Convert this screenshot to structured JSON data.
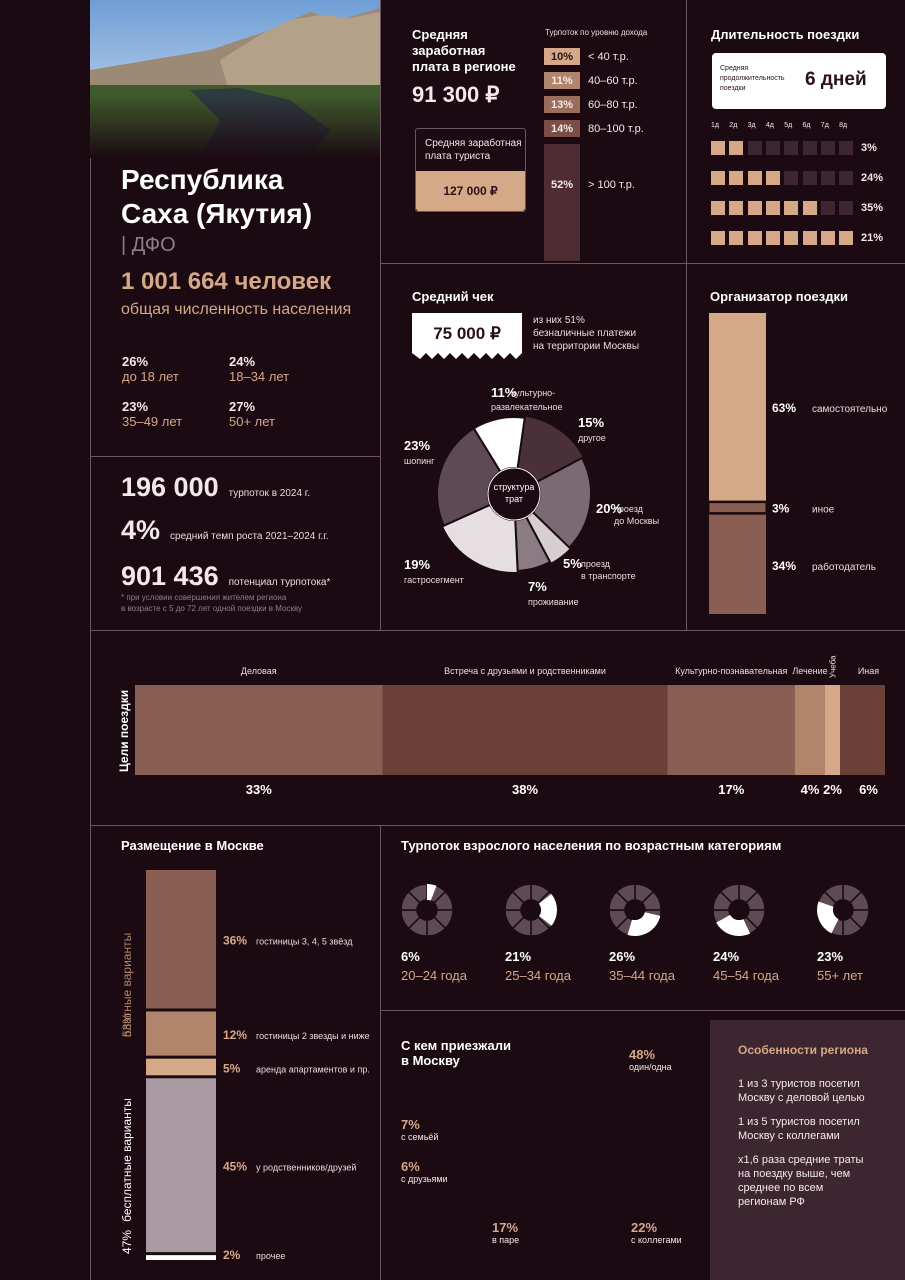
{
  "colors": {
    "bg": "#1c0a12",
    "accent": "#d5a887",
    "brown1": "#8a5e52",
    "brown2": "#6a4038",
    "brown3": "#b0856b",
    "grey": "#a99aa2",
    "lightgrey": "#d7ced2",
    "panel": "#3e2630"
  },
  "hero": {
    "title1": "Республика",
    "title2": "Саха (Якутия)",
    "district": "| ДФО",
    "population": "1 001 664 человек",
    "population_label": "общая численность населения",
    "age": [
      {
        "pct": "26%",
        "label": "до 18 лет"
      },
      {
        "pct": "24%",
        "label": "18–34 лет"
      },
      {
        "pct": "23%",
        "label": "35–49 лет"
      },
      {
        "pct": "27%",
        "label": "50+ лет"
      }
    ]
  },
  "flow": {
    "v1": "196 000",
    "l1": "турпоток в 2024 г.",
    "v2": "4%",
    "l2": "средний темп роста 2021–2024 г.г.",
    "v3": "901 436",
    "l3": "потенциал турпотока*",
    "note1": "* при условии совершения жителем региона",
    "note2": "в возрасте с 5 до 72 лет одной поездки в Москву"
  },
  "salary": {
    "title1": "Средняя",
    "title2": "заработная",
    "title3": "плата в регионе",
    "value": "91 300 ₽",
    "tourist_label1": "Средняя заработная",
    "tourist_label2": "плата туриста",
    "tourist_value": "127 000 ₽",
    "income_title": "Турпоток по уровню дохода",
    "income": [
      {
        "pct": "10%",
        "label": "< 40 т.р."
      },
      {
        "pct": "11%",
        "label": "40–60 т.р."
      },
      {
        "pct": "13%",
        "label": "60–80 т.р."
      },
      {
        "pct": "14%",
        "label": "80–100 т.р."
      },
      {
        "pct": "52%",
        "label": "> 100 т.р."
      }
    ]
  },
  "duration": {
    "title": "Длительность поездки",
    "avg_label1": "Средняя",
    "avg_label2": "продолжительность",
    "avg_label3": "поездки",
    "avg_value": "6 дней",
    "days": [
      "1д",
      "2д",
      "3д",
      "4д",
      "5д",
      "6д",
      "7д",
      "8д"
    ],
    "rows": [
      {
        "filled": 2,
        "pct": "3%"
      },
      {
        "filled": 4,
        "pct": "24%"
      },
      {
        "filled": 6,
        "pct": "35%"
      },
      {
        "filled": 8,
        "pct": "21%"
      }
    ]
  },
  "check": {
    "title": "Средний чек",
    "value": "75 000 ₽",
    "note1": "из них 51%",
    "note2": "безналичные платежи",
    "note3": "на территории Москвы",
    "center1": "структура",
    "center2": "трат",
    "slices": [
      {
        "pct": "11%",
        "label1": "культурно-",
        "label2": "развлекательное",
        "value": 11,
        "color": "#ffffff"
      },
      {
        "pct": "15%",
        "label1": "другое",
        "label2": "",
        "value": 15,
        "color": "#4a3039"
      },
      {
        "pct": "20%",
        "label1": "проезд",
        "label2": "до Москвы",
        "value": 20,
        "color": "#7b6a73"
      },
      {
        "pct": "5%",
        "label1": "проезд",
        "label2": "в транспорте",
        "value": 5,
        "color": "#d7ced2"
      },
      {
        "pct": "7%",
        "label1": "проживание",
        "label2": "",
        "value": 7,
        "color": "#8b7b83"
      },
      {
        "pct": "19%",
        "label1": "гастросегмент",
        "label2": "",
        "value": 19,
        "color": "#e6dfe2"
      },
      {
        "pct": "23%",
        "label1": "шопинг",
        "label2": "",
        "value": 23,
        "color": "#5e4a54"
      }
    ]
  },
  "organizer": {
    "title": "Организатор  поездки",
    "items": [
      {
        "pct": "63%",
        "label": "самостоятельно",
        "value": 63,
        "color": "#d5a887"
      },
      {
        "pct": "3%",
        "label": "иное",
        "value": 3,
        "color": "#8a5e52"
      },
      {
        "pct": "34%",
        "label": "работодатель",
        "value": 34,
        "color": "#8a5e52"
      }
    ]
  },
  "purpose": {
    "axis": "Цели поездки",
    "items": [
      {
        "label": "Деловая",
        "pct": "33%",
        "value": 33,
        "color": "#8a5e52"
      },
      {
        "label": "Встреча с друзьями и родственниками",
        "pct": "38%",
        "value": 38,
        "color": "#6a4038"
      },
      {
        "label": "Культурно-познавательная",
        "pct": "17%",
        "value": 17,
        "color": "#8a5e52"
      },
      {
        "label": "Лечение",
        "pct": "4%",
        "value": 4,
        "color": "#b0856b"
      },
      {
        "label": "Учеба",
        "pct": "2%",
        "value": 2,
        "color": "#d5a887"
      },
      {
        "label": "Иная",
        "pct": "6%",
        "value": 6,
        "color": "#6a4038"
      }
    ]
  },
  "lodging": {
    "title": "Размещение в Москве",
    "paid": "платные варианты",
    "paid_pct": "53%",
    "free": "бесплатные варианты",
    "free_pct": "47%",
    "items": [
      {
        "pct": "36%",
        "label": "гостиницы 3, 4, 5 звёзд",
        "value": 36,
        "color": "#8a5e52"
      },
      {
        "pct": "12%",
        "label": "гостиницы 2 звезды и ниже",
        "value": 12,
        "color": "#b0856b"
      },
      {
        "pct": "5%",
        "label": "аренда апартаментов и пр.",
        "value": 5,
        "color": "#d5a887"
      },
      {
        "pct": "45%",
        "label": "у родственников/друзей",
        "value": 45,
        "color": "#a99aa2"
      },
      {
        "pct": "2%",
        "label": "прочее",
        "value": 2,
        "color": "#ffffff"
      }
    ]
  },
  "agegroups": {
    "title": "Турпоток взрослого населения по возрастным категориям",
    "items": [
      {
        "pct": "6%",
        "label": "20–24 года",
        "value": 6
      },
      {
        "pct": "21%",
        "label": "25–34 года",
        "value": 21
      },
      {
        "pct": "26%",
        "label": "35–44 года",
        "value": 26
      },
      {
        "pct": "24%",
        "label": "45–54 года",
        "value": 24
      },
      {
        "pct": "23%",
        "label": "55+ лет",
        "value": 23
      }
    ]
  },
  "company": {
    "title1": "С кем приезжали",
    "title2": "в Москву",
    "items": [
      {
        "pct": "48%",
        "label": "один/одна"
      },
      {
        "pct": "7%",
        "label": "с семьёй"
      },
      {
        "pct": "6%",
        "label": "с друзьями"
      },
      {
        "pct": "17%",
        "label": "в паре"
      },
      {
        "pct": "22%",
        "label": "с коллегами"
      }
    ]
  },
  "features": {
    "title": "Особенности региона",
    "p1a": "1 из 3 туристов посетил",
    "p1b": "Москву с деловой целью",
    "p2a": "1 из 5 туристов посетил",
    "p2b": "Москву с коллегами",
    "p3a": "х1,6 раза средние траты",
    "p3b": "на поездку выше, чем",
    "p3c": "среднее по всем",
    "p3d": "регионам РФ"
  }
}
